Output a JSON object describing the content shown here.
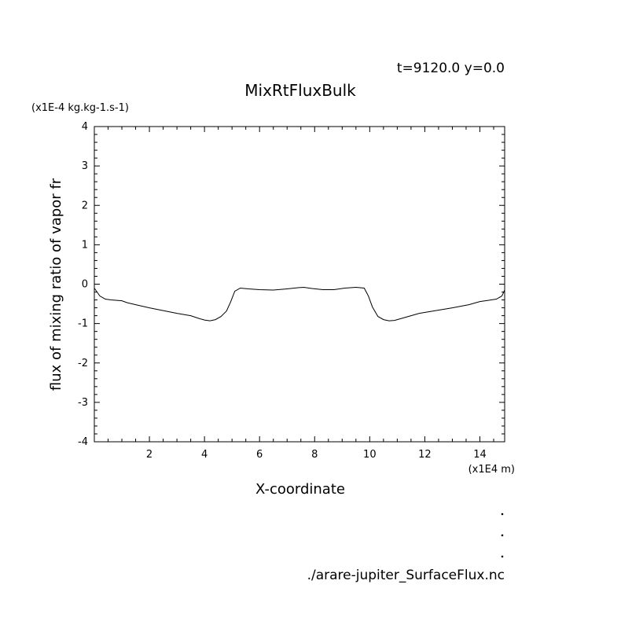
{
  "header": {
    "time_info": "t=9120.0 y=0.0",
    "title": "MixRtFluxBulk",
    "y_scale_unit": "(x1E-4 kg.kg-1.s-1)",
    "x_scale_unit": "(x1E4 m)",
    "source_file": "./arare-jupiter_SurfaceFlux.nc"
  },
  "chart_data": {
    "type": "line",
    "title": "MixRtFluxBulk",
    "xlabel": "X-coordinate",
    "ylabel": "flux of mixing ratio of vapor fr",
    "xlim": [
      0,
      14.9
    ],
    "ylim": [
      -4,
      4
    ],
    "x_ticks": [
      2,
      4,
      6,
      8,
      10,
      12,
      14
    ],
    "x_tick_labels": [
      "2",
      "4",
      "6",
      "8",
      "10",
      "12",
      "14"
    ],
    "y_ticks": [
      -4,
      -3,
      -2,
      -1,
      0,
      1,
      2,
      3,
      4
    ],
    "y_tick_labels": [
      "-4",
      "-3",
      "-2",
      "-1",
      "0",
      "1",
      "2",
      "3",
      "4"
    ],
    "grid": false,
    "series": [
      {
        "x": [
          0.0,
          0.2,
          0.4,
          0.6,
          1.0,
          1.2,
          1.5,
          2.0,
          2.5,
          3.0,
          3.5,
          3.8,
          4.0,
          4.2,
          4.4,
          4.6,
          4.8,
          4.95,
          5.1,
          5.3,
          5.6,
          6.0,
          6.5,
          7.0,
          7.4,
          7.6,
          7.9,
          8.3,
          8.7,
          9.1,
          9.5,
          9.8,
          9.95,
          10.1,
          10.3,
          10.5,
          10.7,
          10.9,
          11.1,
          11.4,
          11.8,
          12.4,
          13.0,
          13.6,
          14.0,
          14.3,
          14.6,
          14.8,
          14.9
        ],
        "y": [
          -0.1,
          -0.3,
          -0.38,
          -0.4,
          -0.42,
          -0.47,
          -0.52,
          -0.6,
          -0.67,
          -0.74,
          -0.8,
          -0.87,
          -0.91,
          -0.93,
          -0.9,
          -0.82,
          -0.68,
          -0.45,
          -0.18,
          -0.1,
          -0.12,
          -0.14,
          -0.15,
          -0.12,
          -0.09,
          -0.08,
          -0.11,
          -0.14,
          -0.14,
          -0.1,
          -0.08,
          -0.1,
          -0.3,
          -0.58,
          -0.82,
          -0.9,
          -0.93,
          -0.92,
          -0.88,
          -0.82,
          -0.74,
          -0.67,
          -0.6,
          -0.52,
          -0.44,
          -0.41,
          -0.38,
          -0.3,
          -0.15
        ]
      }
    ]
  }
}
